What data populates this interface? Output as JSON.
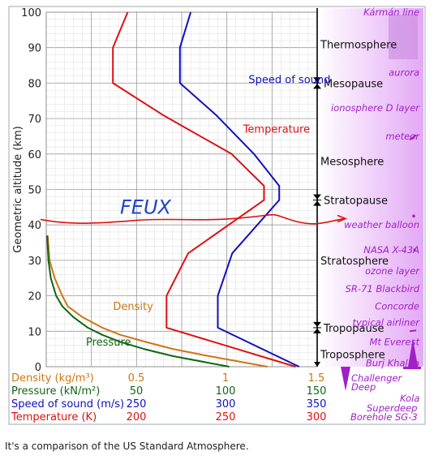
{
  "caption": "It's a comparison of the US Standard Atmosphere.",
  "chart_data": {
    "type": "line",
    "ylabel": "Geometric altitude (km)",
    "ylim": [
      0,
      100
    ],
    "yticks": [
      0,
      10,
      20,
      30,
      40,
      50,
      60,
      70,
      80,
      90,
      100
    ],
    "grid": true,
    "colors": {
      "temperature": "#dd1111",
      "speed": "#1111bb",
      "pressure": "#116611",
      "density": "#cc7711",
      "layers": "#000000",
      "panel": "#e3a8f5",
      "panel_text": "#a020c8",
      "annotation": "#2244cc"
    },
    "axes": [
      {
        "id": "density",
        "label": "Density (kg/m³)",
        "color": "#cc7711",
        "ticks": [
          "0.5",
          "1",
          "1.5"
        ],
        "range": [
          0,
          1.5
        ],
        "tick_values": [
          0.5,
          1,
          1.5
        ]
      },
      {
        "id": "pressure",
        "label": "Pressure (kN/m²)",
        "color": "#116611",
        "ticks": [
          "50",
          "100",
          "150"
        ],
        "range": [
          0,
          150
        ],
        "tick_values": [
          50,
          100,
          150
        ]
      },
      {
        "id": "speed",
        "label": "Speed of sound (m/s)",
        "color": "#1111bb",
        "ticks": [
          "250",
          "300",
          "350"
        ],
        "range": [
          200,
          350
        ],
        "tick_values": [
          250,
          300,
          350
        ]
      },
      {
        "id": "temperature",
        "label": "Temperature (K)",
        "color": "#dd1111",
        "ticks": [
          "200",
          "250",
          "300"
        ],
        "range": [
          150,
          300
        ],
        "tick_values": [
          200,
          250,
          300
        ]
      }
    ],
    "series": [
      {
        "id": "temperature",
        "name": "Temperature",
        "axis": "temperature",
        "color": "#dd1111",
        "x": [
          288,
          216.6,
          216.6,
          228.6,
          270.6,
          270.6,
          252.6,
          214.6,
          186.9,
          186.9,
          195.1
        ],
        "y": [
          0,
          11,
          20,
          32,
          47,
          51,
          60,
          71,
          80,
          90,
          100
        ]
      },
      {
        "id": "speed",
        "name": "Speed of sound",
        "axis": "speed",
        "color": "#1111bb",
        "x": [
          340,
          295,
          295,
          303,
          329,
          329,
          315,
          294,
          274,
          274,
          280
        ],
        "y": [
          0,
          11,
          20,
          32,
          47,
          51,
          60,
          71,
          80,
          90,
          100
        ]
      },
      {
        "id": "density",
        "name": "Density",
        "axis": "density",
        "color": "#cc7711",
        "x": [
          1.225,
          0.9,
          0.7,
          0.55,
          0.41,
          0.31,
          0.2,
          0.12,
          0.0889,
          0.0465,
          0.0184,
          0.008
        ],
        "y": [
          0,
          3,
          5,
          7,
          9,
          11,
          14,
          17,
          20,
          25,
          30,
          37
        ]
      },
      {
        "id": "pressure",
        "name": "Pressure",
        "axis": "pressure",
        "color": "#116611",
        "x": [
          101.3,
          70,
          54,
          41,
          31,
          23,
          15,
          9,
          5.5,
          2.5,
          1.2,
          0.5
        ],
        "y": [
          0,
          3,
          5,
          7,
          9,
          11,
          14,
          17,
          20,
          25,
          30,
          37
        ]
      }
    ],
    "series_labels": [
      {
        "text": "Temperature",
        "color": "#dd1111",
        "x": 259,
        "y": 66
      },
      {
        "text": "Speed of sound",
        "color": "#1111bb",
        "x": 312,
        "y": 80
      },
      {
        "text": "Density",
        "color": "#cc7711",
        "x": 0.37,
        "y": 16
      },
      {
        "text": "Pressure",
        "color": "#116611",
        "x": 22,
        "y": 6
      }
    ],
    "layers": [
      {
        "name": "Thermosphere",
        "y": 91,
        "marker": false
      },
      {
        "name": "Mesopause",
        "y": 80,
        "marker": true
      },
      {
        "name": "Mesosphere",
        "y": 58,
        "marker": false
      },
      {
        "name": "Stratopause",
        "y": 47,
        "marker": true
      },
      {
        "name": "Stratosphere",
        "y": 30,
        "marker": false
      },
      {
        "name": "Tropopause",
        "y": 11,
        "marker": true
      },
      {
        "name": "Troposphere",
        "y": 3.5,
        "marker": false
      }
    ],
    "landmarks": [
      {
        "name": "Kármán line",
        "y": 100
      },
      {
        "name": "aurora",
        "y": 83
      },
      {
        "name": "ionosphere D layer",
        "y": 73
      },
      {
        "name": "meteor",
        "y": 65
      },
      {
        "name": "weather balloon",
        "y": 40
      },
      {
        "name": "NASA X-43A",
        "y": 33
      },
      {
        "name": "ozone layer",
        "y": 27
      },
      {
        "name": "SR-71 Blackbird",
        "y": 22
      },
      {
        "name": "Concorde",
        "y": 17
      },
      {
        "name": "typical airliner",
        "y": 12.5
      },
      {
        "name": "Mt Everest",
        "y": 7
      },
      {
        "name": "Burj Khalifa",
        "y": 1
      },
      {
        "name": "Challenger Deep",
        "y": -4
      },
      {
        "name": "Kola Superdeep Borehole SG-3",
        "y": -10
      }
    ],
    "annotation": {
      "text": "FEUX",
      "y": 42
    }
  }
}
